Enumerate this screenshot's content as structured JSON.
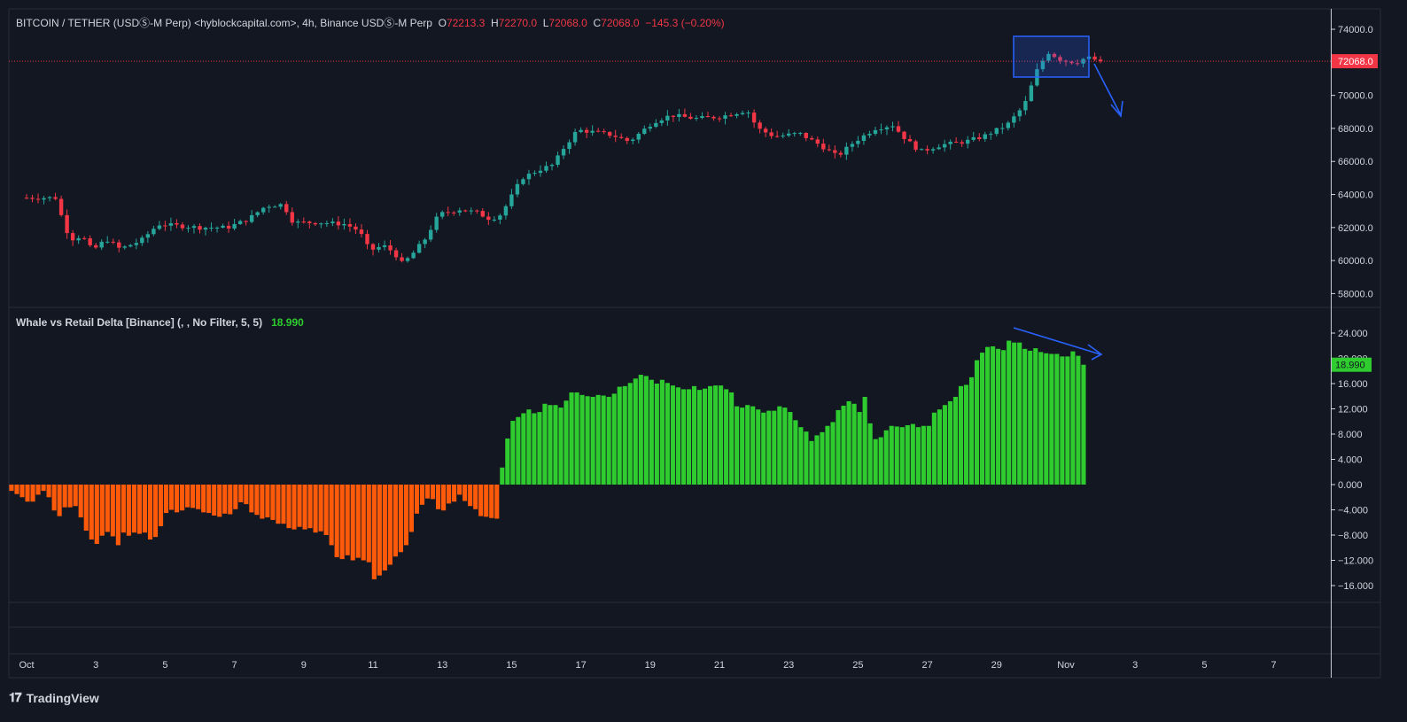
{
  "header": {
    "symbol": "BITCOIN / TETHER (USDⓈ-M Perp) <hyblockcapital.com>, 4h, Binance USDⓈ-M Perp",
    "open_label": "O",
    "open": "72213.3",
    "high_label": "H",
    "high": "72270.0",
    "low_label": "L",
    "low": "72068.0",
    "close_label": "C",
    "close": "72068.0",
    "change": "−145.3 (−0.20%)"
  },
  "indicator": {
    "title": "Whale vs Retail Delta [Binance] (, , No Filter, 5, 5)",
    "value": "18.990"
  },
  "footer": {
    "brand": "TradingView",
    "logo_icon": "tradingview-logo-icon"
  },
  "colors": {
    "background": "#131722",
    "up": "#26a69a",
    "down": "#f23645",
    "hist_pos": "#2ecc2e",
    "hist_neg": "#ff5a0a",
    "annotation": "#2962ff",
    "price_line": "#f23645",
    "grid_border": "#2a2e39",
    "axis_text": "#d1d4dc"
  },
  "chart_data": [
    {
      "type": "candlestick",
      "title": "BITCOIN / TETHER (USDⓈ-M Perp), 4h",
      "timeframe": "4h",
      "x_ticks": [
        "Oct",
        "3",
        "5",
        "7",
        "9",
        "11",
        "13",
        "15",
        "17",
        "19",
        "21",
        "23",
        "25",
        "27",
        "29",
        "Nov",
        "3",
        "5",
        "7"
      ],
      "y_ticks": [
        58000,
        60000,
        62000,
        64000,
        66000,
        68000,
        70000,
        72000,
        74000
      ],
      "ylim": [
        57700,
        74700
      ],
      "last_price": 72068.0,
      "last_price_label": "72068.0",
      "y_tick_labels": [
        "58000.0",
        "60000.0",
        "62000.0",
        "64000.0",
        "66000.0",
        "68000.0",
        "70000.0",
        "72000.0",
        "74000.0"
      ],
      "close_path": [
        {
          "day": 0,
          "close": 63800
        },
        {
          "day": 0.9,
          "close": 63800
        },
        {
          "day": 1.05,
          "close": 62200
        },
        {
          "day": 1.3,
          "close": 61300
        },
        {
          "day": 1.6,
          "close": 61500
        },
        {
          "day": 1.9,
          "close": 60600
        },
        {
          "day": 2.3,
          "close": 61300
        },
        {
          "day": 2.7,
          "close": 60700
        },
        {
          "day": 3.3,
          "close": 61200
        },
        {
          "day": 3.8,
          "close": 62200
        },
        {
          "day": 5.0,
          "close": 62000
        },
        {
          "day": 5.8,
          "close": 62000
        },
        {
          "day": 6.4,
          "close": 62500
        },
        {
          "day": 6.9,
          "close": 63300
        },
        {
          "day": 7.4,
          "close": 63400
        },
        {
          "day": 7.7,
          "close": 62300
        },
        {
          "day": 8.5,
          "close": 62300
        },
        {
          "day": 9.2,
          "close": 62200
        },
        {
          "day": 9.6,
          "close": 61800
        },
        {
          "day": 9.9,
          "close": 60600
        },
        {
          "day": 10.3,
          "close": 60900
        },
        {
          "day": 10.6,
          "close": 60500
        },
        {
          "day": 10.85,
          "close": 59800
        },
        {
          "day": 11.1,
          "close": 60300
        },
        {
          "day": 11.5,
          "close": 61300
        },
        {
          "day": 11.9,
          "close": 62800
        },
        {
          "day": 12.5,
          "close": 63100
        },
        {
          "day": 13.0,
          "close": 62900
        },
        {
          "day": 13.4,
          "close": 62500
        },
        {
          "day": 13.7,
          "close": 62800
        },
        {
          "day": 14.0,
          "close": 63900
        },
        {
          "day": 14.3,
          "close": 65000
        },
        {
          "day": 14.8,
          "close": 65500
        },
        {
          "day": 15.2,
          "close": 65800
        },
        {
          "day": 15.5,
          "close": 66800
        },
        {
          "day": 15.9,
          "close": 67900
        },
        {
          "day": 16.3,
          "close": 67800
        },
        {
          "day": 16.9,
          "close": 67600
        },
        {
          "day": 17.4,
          "close": 67200
        },
        {
          "day": 18.1,
          "close": 68400
        },
        {
          "day": 18.6,
          "close": 68800
        },
        {
          "day": 19.3,
          "close": 68600
        },
        {
          "day": 20.0,
          "close": 68700
        },
        {
          "day": 20.8,
          "close": 69100
        },
        {
          "day": 21.1,
          "close": 68000
        },
        {
          "day": 21.6,
          "close": 67500
        },
        {
          "day": 22.3,
          "close": 67700
        },
        {
          "day": 22.9,
          "close": 67000
        },
        {
          "day": 23.4,
          "close": 66300
        },
        {
          "day": 23.9,
          "close": 67200
        },
        {
          "day": 24.5,
          "close": 68000
        },
        {
          "day": 25.0,
          "close": 68200
        },
        {
          "day": 25.4,
          "close": 67300
        },
        {
          "day": 25.8,
          "close": 66600
        },
        {
          "day": 26.4,
          "close": 67000
        },
        {
          "day": 27.1,
          "close": 67200
        },
        {
          "day": 27.6,
          "close": 67500
        },
        {
          "day": 28.3,
          "close": 68200
        },
        {
          "day": 28.8,
          "close": 69400
        },
        {
          "day": 29.2,
          "close": 71700
        },
        {
          "day": 29.5,
          "close": 72600
        },
        {
          "day": 29.9,
          "close": 72100
        },
        {
          "day": 30.3,
          "close": 72000
        },
        {
          "day": 30.6,
          "close": 72300
        },
        {
          "day": 31.0,
          "close": 72068
        }
      ]
    },
    {
      "type": "bar",
      "title": "Whale vs Retail Delta [Binance] (, , No Filter, 5, 5)",
      "last_value_label": "18.990",
      "ylim": [
        -19.5,
        24.5
      ],
      "y_ticks": [
        -16,
        -12,
        -8,
        -4,
        0,
        4,
        8,
        12,
        16,
        20,
        24
      ],
      "y_tick_labels": [
        "−16.000",
        "−12.000",
        "−8.000",
        "−4.000",
        "0.000",
        "4.000",
        "8.000",
        "12.000",
        "16.000",
        "20.000",
        "24.000"
      ],
      "values": [
        -1.0,
        -1.5,
        -2.0,
        -2.7,
        -2.7,
        -1.6,
        -1.0,
        -2.0,
        -4.1,
        -5.0,
        -3.6,
        -3.6,
        -3.4,
        -5.2,
        -7.3,
        -8.7,
        -9.4,
        -8.1,
        -7.5,
        -8.2,
        -9.6,
        -7.6,
        -8.1,
        -7.6,
        -7.8,
        -7.6,
        -8.7,
        -8.3,
        -6.6,
        -4.5,
        -4.0,
        -4.4,
        -4.1,
        -3.6,
        -3.7,
        -3.9,
        -4.4,
        -4.5,
        -4.9,
        -5.1,
        -4.6,
        -4.7,
        -3.9,
        -2.8,
        -3.1,
        -4.4,
        -4.8,
        -5.4,
        -5.2,
        -5.6,
        -6.2,
        -6.2,
        -6.9,
        -7.1,
        -6.7,
        -7.1,
        -6.9,
        -7.6,
        -7.4,
        -8.0,
        -9.6,
        -11.5,
        -11.8,
        -11.2,
        -12.0,
        -11.6,
        -12.0,
        -12.3,
        -15.0,
        -14.4,
        -13.6,
        -12.7,
        -11.4,
        -10.7,
        -9.6,
        -7.5,
        -4.6,
        -3.2,
        -2.2,
        -2.3,
        -3.9,
        -4.1,
        -3.0,
        -2.7,
        -1.6,
        -2.6,
        -3.4,
        -3.9,
        -5.0,
        -5.1,
        -5.3,
        -5.4,
        2.7,
        7.3,
        10.1,
        10.7,
        11.3,
        11.9,
        11.3,
        11.5,
        12.8,
        12.6,
        12.6,
        12.2,
        13.3,
        14.6,
        14.6,
        14.2,
        14.0,
        13.9,
        14.2,
        14.1,
        13.9,
        14.4,
        15.5,
        15.6,
        16.1,
        16.8,
        17.4,
        17.2,
        16.6,
        16.0,
        16.6,
        16.1,
        15.7,
        15.4,
        15.1,
        15.1,
        15.6,
        15.0,
        15.2,
        15.6,
        15.7,
        15.7,
        15.1,
        14.6,
        12.4,
        12.2,
        12.6,
        12.4,
        11.9,
        11.4,
        11.7,
        11.7,
        12.4,
        12.2,
        11.5,
        10.2,
        9.1,
        8.4,
        6.9,
        7.8,
        8.3,
        9.3,
        9.9,
        11.8,
        12.5,
        13.2,
        12.8,
        11.5,
        13.9,
        9.7,
        7.2,
        7.5,
        8.6,
        9.3,
        9.2,
        9.1,
        9.4,
        9.6,
        9.1,
        9.3,
        9.3,
        11.4,
        11.9,
        12.6,
        13.2,
        13.9,
        15.6,
        15.8,
        17.0,
        19.7,
        20.9,
        21.8,
        21.9,
        21.5,
        21.3,
        22.8,
        22.5,
        22.5,
        21.5,
        21.2,
        21.6,
        21.0,
        20.8,
        20.7,
        20.7,
        20.3,
        20.3,
        21.1,
        20.4,
        18.99
      ]
    }
  ]
}
